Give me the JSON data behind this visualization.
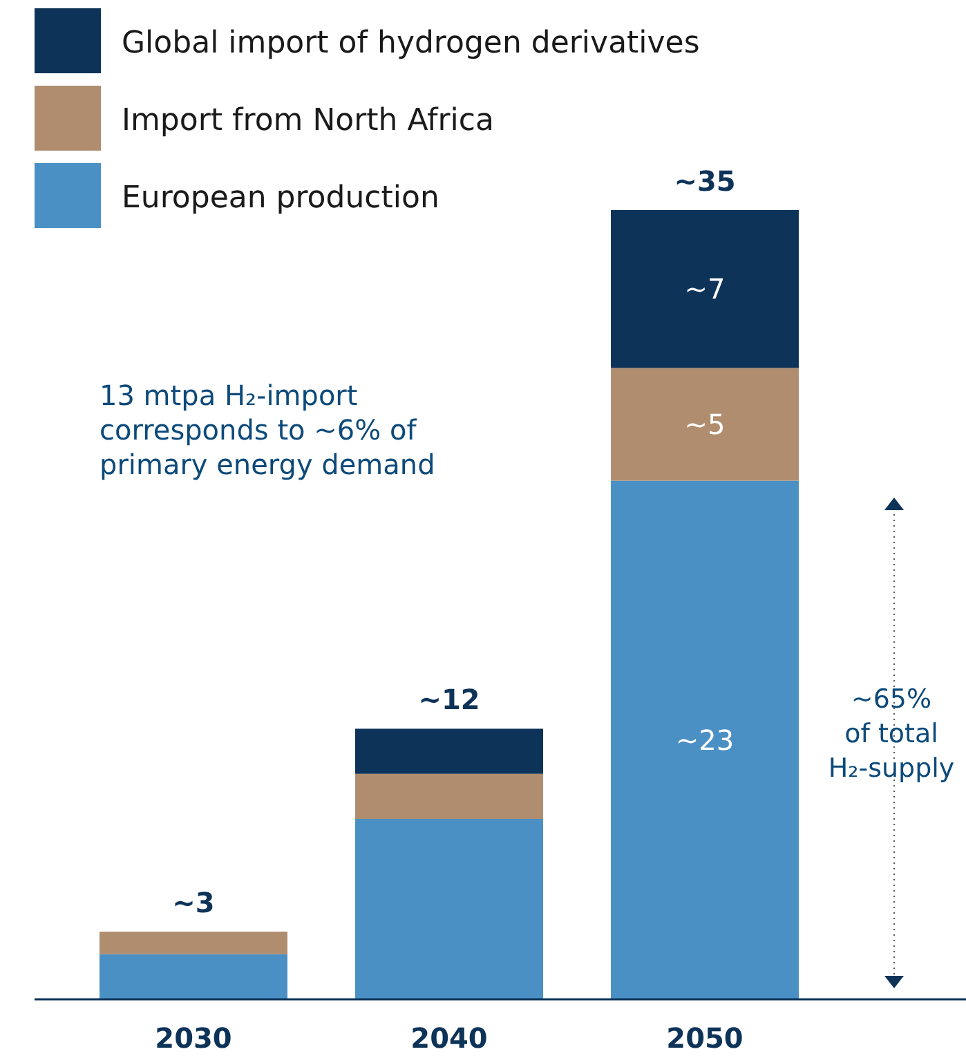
{
  "chart_data": {
    "type": "bar",
    "stacked": true,
    "categories": [
      "2030",
      "2040",
      "2050"
    ],
    "series": [
      {
        "name": "European production",
        "color": "#4a90c4",
        "values": [
          2,
          8,
          23
        ],
        "value_labels": [
          null,
          null,
          "~23"
        ]
      },
      {
        "name": "Import from North Africa",
        "color": "#b08d6e",
        "values": [
          1,
          2,
          5
        ],
        "value_labels": [
          null,
          null,
          "~5"
        ]
      },
      {
        "name": "Global import of hydrogen derivatives",
        "color": "#0d3358",
        "values": [
          0,
          2,
          7
        ],
        "value_labels": [
          null,
          null,
          "~7"
        ]
      }
    ],
    "totals": [
      "~3",
      "~12",
      "~35"
    ],
    "legend": "top left",
    "annotations": [
      "13 mtpa H₂-import corresponds to ~6% of primary energy demand",
      "~65% of total H₂-supply"
    ]
  }
}
